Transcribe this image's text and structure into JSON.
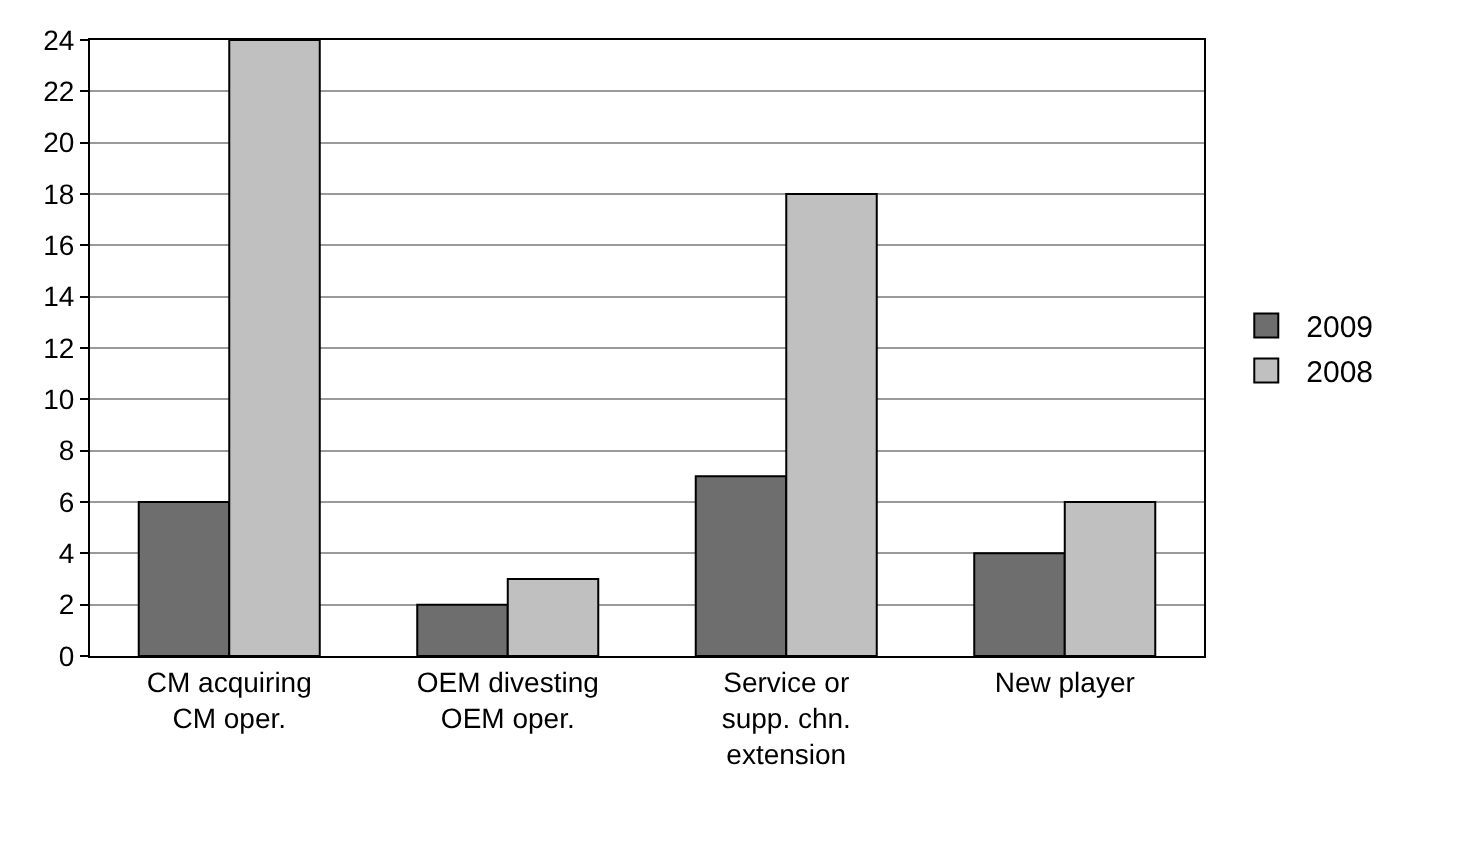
{
  "chart_data": {
    "type": "bar",
    "categories": [
      "CM acquiring CM oper.",
      "OEM divesting OEM oper.",
      "Service or supp. chn. extension",
      "New player"
    ],
    "series": [
      {
        "name": "2009",
        "color": "#6e6e6e",
        "values": [
          6,
          2,
          7,
          4
        ]
      },
      {
        "name": "2008",
        "color": "#c0c0c0",
        "values": [
          24,
          3,
          18,
          6
        ]
      }
    ],
    "ylim": [
      0,
      24
    ],
    "yticks": [
      0,
      2,
      4,
      6,
      8,
      10,
      12,
      14,
      16,
      18,
      20,
      22,
      24
    ],
    "grid": "y",
    "legend": "right"
  }
}
